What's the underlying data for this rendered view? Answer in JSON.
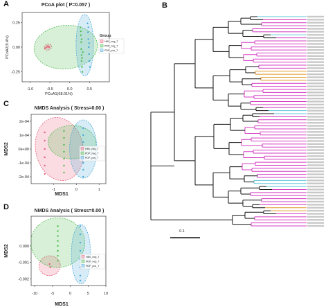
{
  "panel_letters": {
    "a": "A",
    "b": "B",
    "c": "C",
    "d": "D"
  },
  "colors": {
    "hbv": "#e8607a",
    "pdp_neg": "#4cbb4c",
    "pdp_pos": "#4aa8d8",
    "tree_pink": "#d63cc4",
    "tree_orange": "#e39a2a",
    "tree_cyan": "#5fc6dc",
    "tree_black": "#111111"
  },
  "chart_data": [
    {
      "id": "pcoa",
      "type": "scatter",
      "title": "PCoA plot ( P=0.057 )",
      "xlabel": "PCoA1(68.01%)",
      "ylabel": "PCoA2(9.4%)",
      "xlim": [
        -1.2,
        1.0
      ],
      "ylim": [
        -0.35,
        0.35
      ],
      "xticks": [
        "-1.0",
        "-0.5",
        "0.0",
        "0.5"
      ],
      "xtick_values": [
        -1.0,
        -0.5,
        0.0,
        0.5
      ],
      "yticks": [
        "0.25",
        "0.00",
        "-0.25"
      ],
      "ytick_values": [
        0.25,
        0.0,
        -0.25
      ],
      "legend": {
        "title": "Group",
        "entries": [
          "HBV_neg_T",
          "PDP_neg_T",
          "PDP_pos_T"
        ],
        "placement": "right"
      },
      "ellipses": [
        {
          "group": 0,
          "cx": -0.55,
          "cy": 0.0,
          "rx": 0.1,
          "ry": 0.03,
          "angle": -20
        },
        {
          "group": 1,
          "cx": -0.1,
          "cy": 0.0,
          "rx": 0.8,
          "ry": 0.22,
          "angle": -5
        },
        {
          "group": 2,
          "cx": 0.38,
          "cy": 0.02,
          "rx": 0.22,
          "ry": 0.31,
          "angle": 0
        }
      ],
      "series": [
        {
          "group": 0,
          "points": [
            [
              -0.62,
              -0.01
            ],
            [
              -0.58,
              0.0
            ],
            [
              -0.55,
              0.01
            ],
            [
              -0.52,
              0.0
            ]
          ]
        },
        {
          "group": 1,
          "points": [
            [
              0.27,
              0.2
            ],
            [
              0.28,
              0.12
            ],
            [
              0.29,
              0.05
            ],
            [
              0.29,
              -0.02
            ],
            [
              0.3,
              -0.08
            ],
            [
              0.3,
              -0.14
            ],
            [
              0.31,
              -0.2
            ],
            [
              0.32,
              -0.25
            ],
            [
              0.28,
              0.16
            ],
            [
              0.3,
              0.08
            ],
            [
              0.31,
              -0.11
            ],
            [
              0.33,
              -0.05
            ]
          ]
        },
        {
          "group": 2,
          "points": [
            [
              0.45,
              0.24
            ],
            [
              0.46,
              0.15
            ],
            [
              0.47,
              0.08
            ],
            [
              0.48,
              0.0
            ],
            [
              0.49,
              -0.07
            ],
            [
              0.5,
              -0.14
            ],
            [
              0.51,
              -0.2
            ],
            [
              0.47,
              0.2
            ],
            [
              0.49,
              0.04
            ]
          ]
        }
      ]
    },
    {
      "id": "nmds1",
      "type": "scatter",
      "title": "NMDS Analysis ( Stress=0.00 )",
      "xlabel": "MDS1",
      "ylabel": "MDS2",
      "xlim": [
        -2.0,
        1.3
      ],
      "ylim": [
        -0.00025,
        0.00025
      ],
      "xticks": [
        "-1",
        "0",
        "1"
      ],
      "xtick_values": [
        -1,
        0,
        1
      ],
      "yticks": [
        "2e-04",
        "1e-04",
        "0e+00",
        "-1e-04",
        "-2e-04"
      ],
      "ytick_values": [
        0.0002,
        0.0001,
        0.0,
        -0.0001,
        -0.0002
      ],
      "legend": {
        "entries": [
          "HBV_neg_T",
          "PDP_neg_T",
          "PDP_pos_T"
        ],
        "placement": "right"
      },
      "ellipses": [
        {
          "group": 0,
          "cx": -0.75,
          "cy": 0.0,
          "rx": 1.05,
          "ry": 0.00023,
          "angle": -12
        },
        {
          "group": 1,
          "cx": -0.2,
          "cy": 5e-05,
          "rx": 1.05,
          "ry": 0.00012,
          "angle": 0
        },
        {
          "group": 2,
          "cx": 0.3,
          "cy": 0.0,
          "rx": 0.6,
          "ry": 0.00021,
          "angle": 0
        }
      ],
      "series": [
        {
          "group": 0,
          "points": [
            [
              -1.4,
              0.00012
            ],
            [
              -1.4,
              6e-05
            ],
            [
              -1.4,
              0.0
            ],
            [
              -1.4,
              -6e-05
            ],
            [
              -1.4,
              -0.00012
            ],
            [
              -1.4,
              -0.00018
            ]
          ]
        },
        {
          "group": 1,
          "points": [
            [
              -0.55,
              0.00013
            ],
            [
              -0.55,
              8e-05
            ],
            [
              -0.55,
              3e-05
            ],
            [
              -0.55,
              -2e-05
            ],
            [
              -0.55,
              -7e-05
            ],
            [
              -0.55,
              -0.00012
            ],
            [
              -0.55,
              -0.00017
            ]
          ]
        },
        {
          "group": 2,
          "points": [
            [
              0.3,
              0.00015
            ],
            [
              0.3,
              0.0001
            ],
            [
              0.3,
              5e-05
            ],
            [
              0.3,
              0.0
            ],
            [
              0.3,
              -5e-05
            ],
            [
              0.3,
              -0.0001
            ],
            [
              0.3,
              -0.00015
            ],
            [
              0.3,
              -0.0002
            ]
          ]
        }
      ]
    },
    {
      "id": "nmds2",
      "type": "scatter",
      "title": "NMDS Analysis ( Stress=0.00 )",
      "xlabel": "MDS1",
      "ylabel": "MDS2",
      "xlim": [
        -11,
        10
      ],
      "ylim": [
        -0.0024,
        0.0018
      ],
      "xticks": [
        "-10",
        "-5",
        "0",
        "5",
        "10"
      ],
      "xtick_values": [
        -10,
        -5,
        0,
        5,
        10
      ],
      "yticks": [
        "0.000",
        "-0.001",
        "-0.002"
      ],
      "ytick_values": [
        0.0,
        -0.001,
        -0.002
      ],
      "legend": {
        "entries": [
          "HBV_neg_T",
          "PDP_neg_T",
          "PDP_pos_T"
        ],
        "placement": "right"
      },
      "ellipses": [
        {
          "group": 0,
          "cx": -5.8,
          "cy": -0.0012,
          "rx": 3.0,
          "ry": 0.0006,
          "angle": -8
        },
        {
          "group": 1,
          "cx": -3.5,
          "cy": 0.0002,
          "rx": 7.6,
          "ry": 0.0015,
          "angle": 0
        },
        {
          "group": 2,
          "cx": 3.0,
          "cy": -0.0005,
          "rx": 2.7,
          "ry": 0.0018,
          "angle": 0
        }
      ],
      "series": [
        {
          "group": 0,
          "points": [
            [
              -5.8,
              -0.0011
            ],
            [
              -5.6,
              -0.0013
            ]
          ]
        },
        {
          "group": 1,
          "points": [
            [
              -3.5,
              0.0012
            ],
            [
              -3.5,
              0.0009
            ],
            [
              -3.5,
              0.0006
            ],
            [
              -3.5,
              0.0003
            ],
            [
              -3.5,
              0.0
            ],
            [
              -3.5,
              -0.0003
            ],
            [
              -3.5,
              -0.0006
            ],
            [
              -3.5,
              -0.0009
            ]
          ]
        },
        {
          "group": 2,
          "points": [
            [
              2.8,
              0.0012
            ],
            [
              2.8,
              0.0007
            ],
            [
              2.8,
              0.0002
            ],
            [
              2.8,
              -0.0003
            ],
            [
              2.8,
              -0.0008
            ],
            [
              2.8,
              -0.0013
            ],
            [
              2.8,
              -0.0018
            ],
            [
              2.8,
              -0.0021
            ]
          ]
        }
      ]
    }
  ],
  "tree": {
    "scale_label": "0.1",
    "leaf_colors": [
      "cyan",
      "pink",
      "pink",
      "pink",
      "pink",
      "pink",
      "cyan",
      "pink",
      "pink",
      "pink",
      "pink",
      "pink",
      "pink",
      "pink",
      "pink",
      "pink",
      "pink",
      "pink",
      "orange",
      "orange",
      "orange",
      "orange",
      "pink",
      "pink",
      "pink",
      "pink",
      "pink",
      "pink",
      "pink",
      "pink",
      "pink",
      "cyan",
      "cyan",
      "pink",
      "pink",
      "pink",
      "pink",
      "pink",
      "pink",
      "pink",
      "pink",
      "pink",
      "pink",
      "pink",
      "pink",
      "pink",
      "pink",
      "pink",
      "pink",
      "pink",
      "pink",
      "pink",
      "pink",
      "pink",
      "cyan",
      "cyan",
      "cyan",
      "pink",
      "pink",
      "pink",
      "pink",
      "pink",
      "pink",
      "orange",
      "orange",
      "pink",
      "pink",
      "pink",
      "pink",
      "pink"
    ]
  }
}
